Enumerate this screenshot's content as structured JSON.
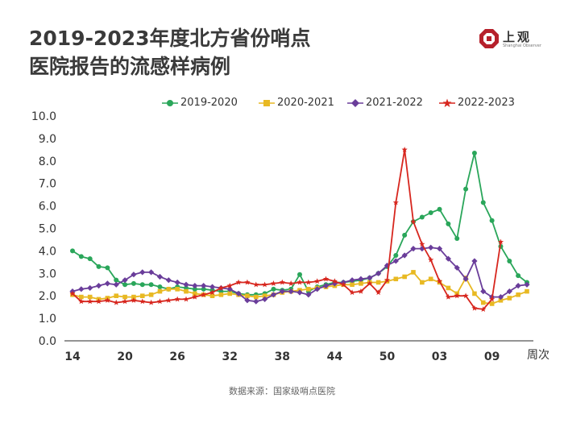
{
  "title": {
    "line1": "2019-2023年度北方省份哨点",
    "line2": "医院报告的流感样病例"
  },
  "logo": {
    "text": "上观",
    "subtext": "Shanghai Observer",
    "color": "#b6202b"
  },
  "source": "数据来源：国家级哨点医院",
  "chart_data": {
    "type": "line",
    "title": "2019-2023年度北方省份哨点医院报告的流感样病例",
    "xlabel": "周次",
    "ylabel": "",
    "ylim": [
      0,
      10
    ],
    "yticks": [
      "0.0",
      "1.0",
      "2.0",
      "3.0",
      "4.0",
      "5.0",
      "6.0",
      "7.0",
      "8.0",
      "9.0",
      "10.0"
    ],
    "xtick_labels": [
      {
        "index": 0,
        "label": "14"
      },
      {
        "index": 6,
        "label": "20"
      },
      {
        "index": 12,
        "label": "26"
      },
      {
        "index": 18,
        "label": "32"
      },
      {
        "index": 24,
        "label": "38"
      },
      {
        "index": 30,
        "label": "44"
      },
      {
        "index": 36,
        "label": "50"
      },
      {
        "index": 42,
        "label": "03"
      },
      {
        "index": 48,
        "label": "09"
      }
    ],
    "n_points": 53,
    "grid": false,
    "legend_position": "top",
    "series": [
      {
        "name": "2019-2020",
        "color": "#2aa65a",
        "marker": "circle",
        "values": [
          4.0,
          3.75,
          3.65,
          3.3,
          3.25,
          2.7,
          2.5,
          2.55,
          2.5,
          2.5,
          2.4,
          2.3,
          2.4,
          2.35,
          2.3,
          2.3,
          2.25,
          2.2,
          2.2,
          2.1,
          2.05,
          2.05,
          2.1,
          2.3,
          2.25,
          2.3,
          2.95,
          2.2,
          2.4,
          2.5,
          2.6,
          2.6,
          2.65,
          2.7,
          2.8,
          3.0,
          3.3,
          3.8,
          4.7,
          5.3,
          5.5,
          5.7,
          5.85,
          5.2,
          4.55,
          6.75,
          8.35,
          6.15,
          5.35,
          4.2,
          3.55,
          2.9,
          2.6
        ]
      },
      {
        "name": "2020-2021",
        "color": "#e8b923",
        "marker": "square",
        "values": [
          2.05,
          1.95,
          1.95,
          1.85,
          1.9,
          2.0,
          1.95,
          1.95,
          2.0,
          2.05,
          2.2,
          2.3,
          2.3,
          2.2,
          2.1,
          2.05,
          2.0,
          2.05,
          2.1,
          2.05,
          2.0,
          1.95,
          2.0,
          2.05,
          2.15,
          2.2,
          2.25,
          2.3,
          2.35,
          2.4,
          2.45,
          2.5,
          2.5,
          2.55,
          2.6,
          2.6,
          2.65,
          2.75,
          2.85,
          3.05,
          2.6,
          2.75,
          2.6,
          2.35,
          2.1,
          2.8,
          2.1,
          1.7,
          1.65,
          1.8,
          1.9,
          2.05,
          2.2
        ]
      },
      {
        "name": "2021-2022",
        "color": "#6a3d9a",
        "marker": "diamond",
        "values": [
          2.2,
          2.3,
          2.35,
          2.45,
          2.55,
          2.5,
          2.7,
          2.95,
          3.05,
          3.05,
          2.85,
          2.7,
          2.6,
          2.5,
          2.45,
          2.45,
          2.4,
          2.35,
          2.3,
          2.1,
          1.8,
          1.75,
          1.85,
          2.05,
          2.2,
          2.2,
          2.15,
          2.05,
          2.3,
          2.45,
          2.55,
          2.6,
          2.7,
          2.75,
          2.8,
          3.0,
          3.35,
          3.55,
          3.8,
          4.1,
          4.1,
          4.15,
          4.1,
          3.65,
          3.25,
          2.75,
          3.55,
          2.2,
          1.95,
          1.95,
          2.2,
          2.45,
          2.5
        ]
      },
      {
        "name": "2022-2023",
        "color": "#d7261e",
        "marker": "star",
        "values": [
          2.1,
          1.75,
          1.75,
          1.75,
          1.8,
          1.7,
          1.75,
          1.8,
          1.75,
          1.7,
          1.75,
          1.8,
          1.85,
          1.85,
          1.95,
          2.05,
          2.15,
          2.35,
          2.45,
          2.6,
          2.6,
          2.5,
          2.5,
          2.55,
          2.6,
          2.55,
          2.6,
          2.6,
          2.65,
          2.75,
          2.65,
          2.5,
          2.15,
          2.2,
          2.55,
          2.15,
          2.7,
          6.15,
          8.5,
          5.3,
          4.3,
          3.6,
          2.65,
          1.95,
          2.0,
          2.0,
          1.45,
          1.4,
          1.85,
          4.4,
          null,
          null,
          null
        ]
      }
    ]
  }
}
